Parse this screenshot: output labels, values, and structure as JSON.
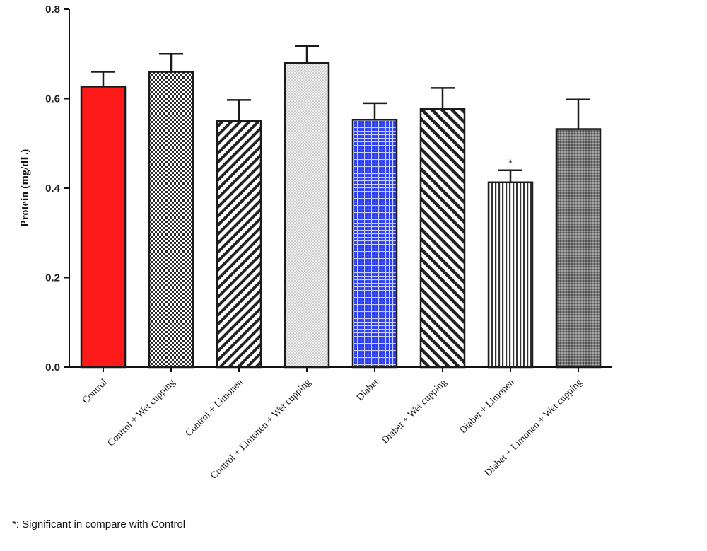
{
  "chart_data": {
    "type": "bar",
    "title": "",
    "xlabel": "",
    "ylabel": "Protein (mg/dL)",
    "ylim": [
      0,
      0.8
    ],
    "yticks": [
      "0.0",
      "0.2",
      "0.4",
      "0.6",
      "0.8"
    ],
    "categories": [
      "Control",
      "Control + Wet cupping",
      "Control + Limonen",
      "Control + Limonen + Wet cupping",
      "Diabet",
      "Diabet + Wet cupping",
      "Diabet + Limonen",
      "Diabet + Limonen + Wet cupping"
    ],
    "values": [
      0.627,
      0.66,
      0.55,
      0.68,
      0.553,
      0.577,
      0.413,
      0.532
    ],
    "errors": [
      0.033,
      0.04,
      0.047,
      0.038,
      0.037,
      0.047,
      0.027,
      0.066
    ],
    "fills": [
      "solid-red",
      "checker-dark",
      "diag-back",
      "dots-light",
      "grid-blue",
      "diag-fwd",
      "vertical-lines",
      "dots-dark"
    ],
    "colors": {
      "control_red": "#ff1a1a",
      "diabet_blue": "#2a3df0",
      "outline": "#1a1a1a"
    },
    "annotations": [
      {
        "category": "Diabet + Limonen",
        "text": "*"
      }
    ],
    "grid": false,
    "legend": "none"
  },
  "footnote": "*: Significant in compare with Control"
}
